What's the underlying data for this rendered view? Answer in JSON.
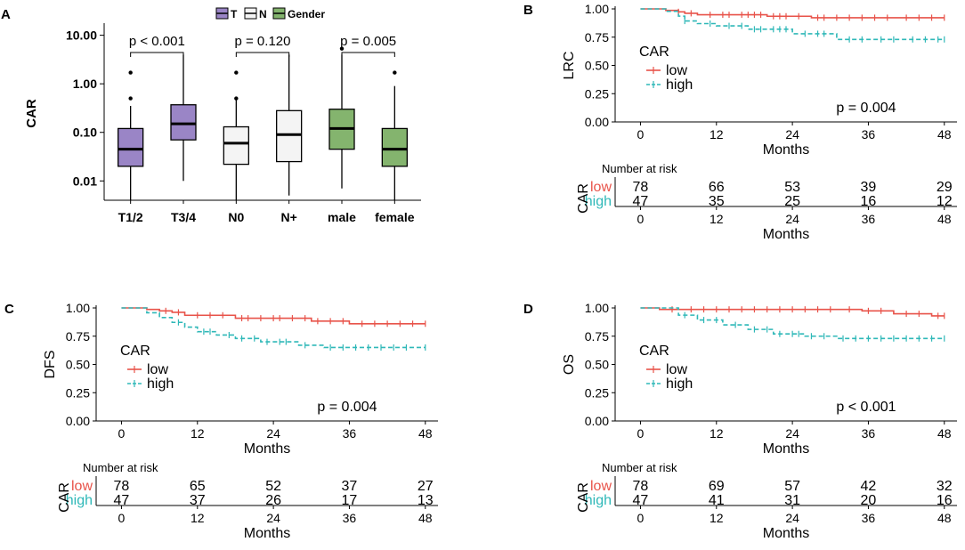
{
  "colors": {
    "low": "#e8534a",
    "high": "#2fb8b8",
    "t_fill": "#9a85c6",
    "n_fill": "#f4f4f4",
    "gender_fill": "#84b46e",
    "axis": "#000000"
  },
  "chart_data": [
    {
      "panel": "A",
      "type": "box",
      "ylabel": "CAR",
      "yscale": "log10",
      "ylim": [
        0.004,
        15
      ],
      "yticks": [
        0.01,
        0.1,
        1,
        10
      ],
      "ytick_labels": [
        "0.01",
        "0.10",
        "1.00",
        "10.00"
      ],
      "legend": [
        {
          "name": "T",
          "fill": "#9a85c6"
        },
        {
          "name": "N",
          "fill": "#f4f4f4"
        },
        {
          "name": "Gender",
          "fill": "#84b46e"
        }
      ],
      "boxes": [
        {
          "category": "T1/2",
          "group": "T",
          "whisker_low": 0.004,
          "q1": 0.02,
          "median": 0.045,
          "q3": 0.12,
          "whisker_high": 0.35,
          "outliers": [
            0.5,
            1.7
          ]
        },
        {
          "category": "T3/4",
          "group": "T",
          "whisker_low": 0.01,
          "q1": 0.07,
          "median": 0.15,
          "q3": 0.37,
          "whisker_high": 4.0,
          "outliers": []
        },
        {
          "category": "N0",
          "group": "N",
          "whisker_low": 0.004,
          "q1": 0.022,
          "median": 0.06,
          "q3": 0.13,
          "whisker_high": 0.5,
          "outliers": [
            0.5,
            1.7
          ]
        },
        {
          "category": "N+",
          "group": "N",
          "whisker_low": 0.005,
          "q1": 0.025,
          "median": 0.09,
          "q3": 0.28,
          "whisker_high": 4.0,
          "outliers": []
        },
        {
          "category": "male",
          "group": "Gender",
          "whisker_low": 0.007,
          "q1": 0.045,
          "median": 0.12,
          "q3": 0.3,
          "whisker_high": 4.0,
          "outliers": [
            5.3
          ]
        },
        {
          "category": "female",
          "group": "Gender",
          "whisker_low": 0.004,
          "q1": 0.02,
          "median": 0.045,
          "q3": 0.12,
          "whisker_high": 0.9,
          "outliers": [
            1.7
          ]
        }
      ],
      "comparisons": [
        {
          "pair": [
            "T1/2",
            "T3/4"
          ],
          "label": "p < 0.001"
        },
        {
          "pair": [
            "N0",
            "N+"
          ],
          "label": "p = 0.120"
        },
        {
          "pair": [
            "male",
            "female"
          ],
          "label": "p = 0.005"
        }
      ]
    },
    {
      "panel": "B",
      "type": "line",
      "ylabel": "LRC",
      "xlabel": "Months",
      "xlim": [
        -4,
        50
      ],
      "ylim": [
        0,
        1
      ],
      "xticks": [
        0,
        12,
        24,
        36,
        48
      ],
      "yticks": [
        0,
        0.25,
        0.5,
        0.75,
        1.0
      ],
      "ytick_labels": [
        "0.00",
        "0.25",
        "0.50",
        "0.75",
        "1.00"
      ],
      "legend_title": "CAR",
      "pvalue": "p = 0.004",
      "series": [
        {
          "name": "low",
          "times": [
            0,
            4,
            6,
            7,
            9,
            20,
            27
          ],
          "surv": [
            1.0,
            0.987,
            0.974,
            0.961,
            0.948,
            0.935,
            0.922
          ],
          "censor_times": [
            6,
            8,
            11,
            13,
            14,
            16,
            17,
            18,
            19,
            21,
            22,
            23,
            25,
            28,
            29,
            31,
            33,
            35,
            37,
            39,
            42,
            44,
            46,
            48
          ]
        },
        {
          "name": "high",
          "times": [
            0,
            4,
            6,
            7,
            9,
            12,
            17,
            24,
            31
          ],
          "surv": [
            1.0,
            0.979,
            0.936,
            0.893,
            0.87,
            0.85,
            0.82,
            0.78,
            0.73
          ],
          "censor_times": [
            7,
            11,
            14,
            16,
            18,
            19,
            21,
            22,
            23,
            26,
            28,
            29,
            33,
            35,
            38,
            40,
            43,
            45,
            47,
            48
          ]
        }
      ],
      "risk_table": {
        "title": "Number at risk",
        "row_title": "CAR",
        "xlabel": "Months",
        "rows": [
          {
            "name": "low",
            "values": [
              "78",
              "66",
              "53",
              "39",
              "29"
            ]
          },
          {
            "name": "high",
            "values": [
              "47",
              "35",
              "25",
              "16",
              "12"
            ]
          }
        ]
      }
    },
    {
      "panel": "C",
      "type": "line",
      "ylabel": "DFS",
      "xlabel": "Months",
      "xlim": [
        -4,
        50
      ],
      "ylim": [
        0,
        1
      ],
      "xticks": [
        0,
        12,
        24,
        36,
        48
      ],
      "yticks": [
        0,
        0.25,
        0.5,
        0.75,
        1.0
      ],
      "ytick_labels": [
        "0.00",
        "0.25",
        "0.50",
        "0.75",
        "1.00"
      ],
      "legend_title": "CAR",
      "pvalue": "p = 0.004",
      "series": [
        {
          "name": "low",
          "times": [
            0,
            4,
            6,
            8,
            10,
            18,
            30,
            36
          ],
          "surv": [
            1.0,
            0.987,
            0.974,
            0.961,
            0.935,
            0.909,
            0.883,
            0.86
          ],
          "censor_times": [
            7,
            9,
            12,
            14,
            16,
            19,
            20,
            22,
            24,
            25,
            27,
            29,
            31,
            33,
            35,
            38,
            40,
            42,
            44,
            46,
            48
          ]
        },
        {
          "name": "high",
          "times": [
            0,
            4,
            6,
            8,
            10,
            12,
            15,
            18,
            22,
            28,
            32
          ],
          "surv": [
            1.0,
            0.957,
            0.915,
            0.872,
            0.83,
            0.79,
            0.76,
            0.73,
            0.7,
            0.67,
            0.65
          ],
          "censor_times": [
            9,
            13,
            14,
            17,
            19,
            21,
            23,
            25,
            26,
            29,
            33,
            35,
            37,
            39,
            41,
            43,
            45,
            48
          ]
        }
      ],
      "risk_table": {
        "title": "Number at risk",
        "row_title": "CAR",
        "xlabel": "Months",
        "rows": [
          {
            "name": "low",
            "values": [
              "78",
              "65",
              "52",
              "37",
              "27"
            ]
          },
          {
            "name": "high",
            "values": [
              "47",
              "37",
              "26",
              "17",
              "13"
            ]
          }
        ]
      }
    },
    {
      "panel": "D",
      "type": "line",
      "ylabel": "OS",
      "xlabel": "Months",
      "xlim": [
        -4,
        50
      ],
      "ylim": [
        0,
        1
      ],
      "xticks": [
        0,
        12,
        24,
        36,
        48
      ],
      "yticks": [
        0,
        0.25,
        0.5,
        0.75,
        1.0
      ],
      "ytick_labels": [
        "0.00",
        "0.25",
        "0.50",
        "0.75",
        "1.00"
      ],
      "legend_title": "CAR",
      "pvalue": "p < 0.001",
      "series": [
        {
          "name": "low",
          "times": [
            0,
            3,
            35,
            40,
            46
          ],
          "surv": [
            1.0,
            0.987,
            0.974,
            0.948,
            0.93
          ],
          "censor_times": [
            5,
            8,
            10,
            12,
            14,
            16,
            18,
            20,
            22,
            24,
            26,
            28,
            30,
            33,
            36,
            38,
            42,
            44,
            47,
            48
          ]
        },
        {
          "name": "high",
          "times": [
            0,
            6,
            9,
            13,
            17,
            21,
            26,
            31
          ],
          "surv": [
            1.0,
            0.936,
            0.893,
            0.85,
            0.81,
            0.77,
            0.75,
            0.73
          ],
          "censor_times": [
            7,
            10,
            12,
            15,
            18,
            20,
            22,
            24,
            25,
            27,
            29,
            32,
            34,
            36,
            38,
            40,
            42,
            44,
            46,
            48
          ]
        }
      ],
      "risk_table": {
        "title": "Number at risk",
        "row_title": "CAR",
        "xlabel": "Months",
        "rows": [
          {
            "name": "low",
            "values": [
              "78",
              "69",
              "57",
              "42",
              "32"
            ]
          },
          {
            "name": "high",
            "values": [
              "47",
              "41",
              "31",
              "20",
              "16"
            ]
          }
        ]
      }
    }
  ]
}
